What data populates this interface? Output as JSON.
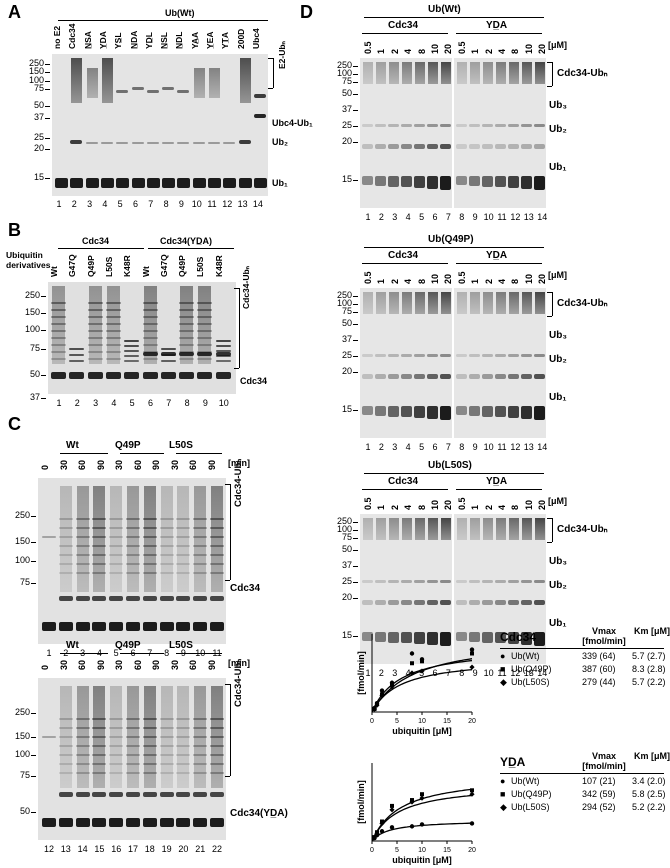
{
  "panelA": {
    "letter": "A",
    "header": "Ub(Wt)",
    "lanes_top": [
      "no E2",
      "Cdc34",
      "N̲SA",
      "Y̲DA",
      "YS̲L",
      "N̲DA",
      "YD̲L",
      "N̲SL",
      "N̲DL",
      "YA̲A",
      "Y̲EA",
      "YT̲A",
      "200D",
      "Ubc4"
    ],
    "mw": [
      "250",
      "150",
      "100",
      "75",
      "50",
      "37",
      "25",
      "20",
      "15"
    ],
    "right_labels": [
      "E2-Ubₙ",
      "Ubc4-Ub₁",
      "Ub₂",
      "Ub₁"
    ],
    "lane_numbers": [
      "1",
      "2",
      "3",
      "4",
      "5",
      "6",
      "7",
      "8",
      "9",
      "10",
      "11",
      "12",
      "13",
      "14"
    ]
  },
  "panelB": {
    "letter": "B",
    "left_header": "Ubiquitin derivatives",
    "group1": "Cdc34",
    "group2": "Cdc34(YD̲A)",
    "lanes_top": [
      "Wt",
      "G47Q",
      "Q49P",
      "L50S",
      "K48R",
      "Wt",
      "G47Q",
      "Q49P",
      "L50S",
      "K48R"
    ],
    "mw": [
      "250",
      "150",
      "100",
      "75",
      "50",
      "37"
    ],
    "right_labels": [
      "Cdc34-Ubₙ",
      "Cdc34"
    ],
    "lane_numbers": [
      "1",
      "2",
      "3",
      "4",
      "5",
      "6",
      "7",
      "8",
      "9",
      "10"
    ]
  },
  "panelC": {
    "letter": "C",
    "top": {
      "groups": [
        "Wt",
        "Q49P",
        "L50S"
      ],
      "times": [
        "0",
        "30",
        "60",
        "90",
        "30",
        "60",
        "90",
        "30",
        "60",
        "90"
      ],
      "unit": "[min]",
      "mw": [
        "250",
        "150",
        "100",
        "75"
      ],
      "right_labels": [
        "Cdc34-Ubₙ",
        "Cdc34"
      ],
      "lane_numbers": [
        "1",
        "2",
        "3",
        "4",
        "5",
        "6",
        "7",
        "8",
        "9",
        "10",
        "11"
      ]
    },
    "bottom": {
      "groups": [
        "Wt",
        "Q49P",
        "L50S"
      ],
      "times": [
        "0",
        "30",
        "60",
        "90",
        "30",
        "60",
        "90",
        "30",
        "60",
        "90"
      ],
      "unit": "[min]",
      "mw": [
        "250",
        "150",
        "100",
        "75",
        "50"
      ],
      "right_labels": [
        "Cdc34-Ubₙ",
        "Cdc34(YD̲A)"
      ],
      "lane_numbers": [
        "12",
        "13",
        "14",
        "15",
        "16",
        "17",
        "18",
        "19",
        "20",
        "21",
        "22"
      ]
    }
  },
  "panelD": {
    "letter": "D",
    "conc": [
      "0.5",
      "1",
      "2",
      "4",
      "8",
      "10",
      "20",
      "0.5",
      "1",
      "2",
      "4",
      "8",
      "10",
      "20"
    ],
    "unit": "[μM]",
    "lane_numbers": [
      "1",
      "2",
      "3",
      "4",
      "5",
      "6",
      "7",
      "8",
      "9",
      "10",
      "11",
      "12",
      "13",
      "14"
    ],
    "gels": [
      {
        "header": "Ub(Wt)",
        "g1": "Cdc34",
        "g2": "YD̲A",
        "mw": [
          "250",
          "100",
          "75",
          "50",
          "37",
          "25",
          "20",
          "15"
        ],
        "labels": [
          "Cdc34-Ubₙ",
          "Ub₃",
          "Ub₂",
          "Ub₁"
        ]
      },
      {
        "header": "Ub(Q49P)",
        "g1": "Cdc34",
        "g2": "YD̲A",
        "mw": [
          "250",
          "100",
          "75",
          "50",
          "37",
          "25",
          "20",
          "15"
        ],
        "labels": [
          "Cdc34-Ubₙ",
          "Ub₃",
          "Ub₂",
          "Ub₁"
        ]
      },
      {
        "header": "Ub(L50S)",
        "g1": "Cdc34",
        "g2": "YD̲A",
        "mw": [
          "250",
          "100",
          "75",
          "50",
          "37",
          "25",
          "20",
          "15"
        ],
        "labels": [
          "Cdc34-Ubₙ",
          "Ub₃",
          "Ub₂",
          "Ub₁"
        ]
      }
    ]
  },
  "chart_data": [
    {
      "type": "scatter",
      "xlabel": "ubiquitin [μM]",
      "ylabel": "[fmol/min]",
      "xlim": [
        0,
        20
      ],
      "ylim": [
        0,
        400
      ],
      "xticks": [
        "0",
        "5",
        "10",
        "15",
        "20"
      ],
      "series": [
        {
          "name": "Ub(Wt)",
          "marker": "circle",
          "vmax": 339,
          "km": 5.7,
          "x": [
            0.5,
            1,
            2,
            4,
            8,
            10,
            20
          ],
          "y": [
            20,
            45,
            110,
            150,
            300,
            270,
            320
          ]
        },
        {
          "name": "Ub(Q49P)",
          "marker": "square",
          "vmax": 387,
          "km": 8.3,
          "x": [
            0.5,
            1,
            2,
            4,
            8,
            10,
            20
          ],
          "y": [
            15,
            40,
            90,
            140,
            250,
            260,
            300
          ]
        },
        {
          "name": "Ub(L50S)",
          "marker": "diamond",
          "vmax": 279,
          "km": 5.7,
          "x": [
            0.5,
            1,
            2,
            4,
            8,
            10,
            20
          ],
          "y": [
            15,
            35,
            85,
            130,
            200,
            210,
            230
          ]
        }
      ],
      "table": {
        "title": "Cdc34",
        "col_vmax": "Vmax [fmol/min]",
        "col_km": "Km [μM]",
        "rows": [
          {
            "name": "Ub(Wt)",
            "vmax": "339 (64)",
            "km": "5.7 (2.7)"
          },
          {
            "name": "Ub(Q49P)",
            "vmax": "387 (60)",
            "km": "8.3 (2.8)"
          },
          {
            "name": "Ub(L50S)",
            "vmax": "279 (44)",
            "km": "5.7 (2.2)"
          }
        ]
      }
    },
    {
      "type": "scatter",
      "xlabel": "ubiquitin [μM]",
      "ylabel": "[fmol/min]",
      "xlim": [
        0,
        20
      ],
      "ylim": [
        0,
        400
      ],
      "xticks": [
        "0",
        "5",
        "10",
        "15",
        "20"
      ],
      "series": [
        {
          "name": "Ub(Wt)",
          "marker": "circle",
          "vmax": 107,
          "km": 3.4,
          "x": [
            0.5,
            1,
            2,
            4,
            8,
            10,
            20
          ],
          "y": [
            15,
            30,
            50,
            70,
            75,
            85,
            90
          ]
        },
        {
          "name": "Ub(Q49P)",
          "marker": "square",
          "vmax": 342,
          "km": 5.8,
          "x": [
            0.5,
            1,
            2,
            4,
            8,
            10,
            20
          ],
          "y": [
            20,
            45,
            100,
            180,
            210,
            240,
            260
          ]
        },
        {
          "name": "Ub(L50S)",
          "marker": "diamond",
          "vmax": 294,
          "km": 5.2,
          "x": [
            0.5,
            1,
            2,
            4,
            8,
            10,
            20
          ],
          "y": [
            20,
            40,
            90,
            160,
            200,
            220,
            240
          ]
        }
      ],
      "table": {
        "title": "YD̲A",
        "col_vmax": "Vmax [fmol/min]",
        "col_km": "Km [μM]",
        "rows": [
          {
            "name": "Ub(Wt)",
            "vmax": "107 (21)",
            "km": "3.4 (2.0)"
          },
          {
            "name": "Ub(Q49P)",
            "vmax": "342 (59)",
            "km": "5.8 (2.5)"
          },
          {
            "name": "Ub(L50S)",
            "vmax": "294 (52)",
            "km": "5.2 (2.2)"
          }
        ]
      }
    }
  ]
}
